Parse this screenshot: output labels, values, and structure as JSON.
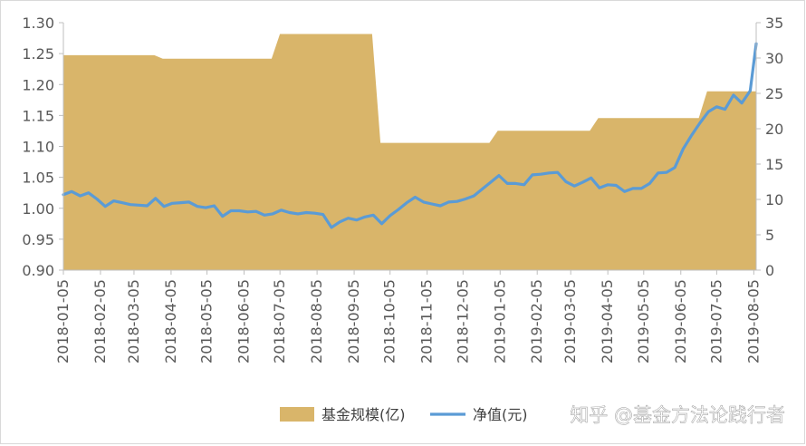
{
  "chart_data": {
    "type": "area+line",
    "x": [
      "2018-01-05",
      "2018-02-05",
      "2018-03-05",
      "2018-04-05",
      "2018-05-05",
      "2018-06-05",
      "2018-07-05",
      "2018-08-05",
      "2018-09-05",
      "2018-10-05",
      "2018-11-05",
      "2018-12-05",
      "2019-01-05",
      "2019-02-05",
      "2019-03-05",
      "2019-04-05",
      "2019-05-05",
      "2019-06-05",
      "2019-07-05",
      "2019-08-05"
    ],
    "xlim": [
      "2018-01-05",
      "2019-08-07"
    ],
    "y_left": {
      "ylim": [
        0.9,
        1.3
      ],
      "ticks": [
        "0.90",
        "0.95",
        "1.00",
        "1.05",
        "1.10",
        "1.15",
        "1.20",
        "1.25",
        "1.30"
      ]
    },
    "y_right": {
      "ylim": [
        0,
        35
      ],
      "ticks": [
        "0",
        "5",
        "10",
        "15",
        "20",
        "25",
        "30",
        "35"
      ]
    },
    "grid": false,
    "legend_position": "bottom",
    "series": [
      {
        "name": "基金规模(亿)",
        "type": "area",
        "axis": "right",
        "color": "#d9b56a",
        "points": [
          [
            "2018-01-05",
            30.4
          ],
          [
            "2018-03-22",
            30.4
          ],
          [
            "2018-03-29",
            29.9
          ],
          [
            "2018-06-28",
            29.9
          ],
          [
            "2018-07-05",
            33.4
          ],
          [
            "2018-09-20",
            33.4
          ],
          [
            "2018-09-27",
            18.0
          ],
          [
            "2018-12-27",
            18.0
          ],
          [
            "2019-01-03",
            19.7
          ],
          [
            "2019-03-21",
            19.7
          ],
          [
            "2019-03-28",
            21.5
          ],
          [
            "2019-06-20",
            21.5
          ],
          [
            "2019-06-27",
            25.3
          ],
          [
            "2019-08-07",
            25.3
          ]
        ]
      },
      {
        "name": "净值(元)",
        "type": "line",
        "axis": "left",
        "color": "#5b9bd5",
        "points": [
          [
            "2018-01-05",
            1.022
          ],
          [
            "2018-01-12",
            1.027
          ],
          [
            "2018-01-19",
            1.02
          ],
          [
            "2018-01-26",
            1.025
          ],
          [
            "2018-02-02",
            1.015
          ],
          [
            "2018-02-09",
            1.003
          ],
          [
            "2018-02-16",
            1.012
          ],
          [
            "2018-02-23",
            1.009
          ],
          [
            "2018-03-02",
            1.006
          ],
          [
            "2018-03-09",
            1.005
          ],
          [
            "2018-03-16",
            1.004
          ],
          [
            "2018-03-23",
            1.016
          ],
          [
            "2018-03-30",
            1.003
          ],
          [
            "2018-04-06",
            1.008
          ],
          [
            "2018-04-13",
            1.009
          ],
          [
            "2018-04-20",
            1.01
          ],
          [
            "2018-04-27",
            1.003
          ],
          [
            "2018-05-04",
            1.001
          ],
          [
            "2018-05-11",
            1.004
          ],
          [
            "2018-05-18",
            0.987
          ],
          [
            "2018-05-25",
            0.996
          ],
          [
            "2018-06-01",
            0.996
          ],
          [
            "2018-06-08",
            0.994
          ],
          [
            "2018-06-15",
            0.995
          ],
          [
            "2018-06-22",
            0.989
          ],
          [
            "2018-06-29",
            0.991
          ],
          [
            "2018-07-06",
            0.997
          ],
          [
            "2018-07-13",
            0.993
          ],
          [
            "2018-07-20",
            0.991
          ],
          [
            "2018-07-27",
            0.993
          ],
          [
            "2018-08-03",
            0.992
          ],
          [
            "2018-08-10",
            0.99
          ],
          [
            "2018-08-17",
            0.969
          ],
          [
            "2018-08-24",
            0.978
          ],
          [
            "2018-08-31",
            0.984
          ],
          [
            "2018-09-07",
            0.981
          ],
          [
            "2018-09-14",
            0.986
          ],
          [
            "2018-09-21",
            0.989
          ],
          [
            "2018-09-28",
            0.975
          ],
          [
            "2018-10-05",
            0.988
          ],
          [
            "2018-10-12",
            0.998
          ],
          [
            "2018-10-19",
            1.009
          ],
          [
            "2018-10-26",
            1.018
          ],
          [
            "2018-11-02",
            1.01
          ],
          [
            "2018-11-09",
            1.007
          ],
          [
            "2018-11-16",
            1.004
          ],
          [
            "2018-11-23",
            1.01
          ],
          [
            "2018-11-30",
            1.011
          ],
          [
            "2018-12-07",
            1.015
          ],
          [
            "2018-12-14",
            1.02
          ],
          [
            "2018-12-21",
            1.031
          ],
          [
            "2018-12-28",
            1.042
          ],
          [
            "2019-01-04",
            1.053
          ],
          [
            "2019-01-11",
            1.04
          ],
          [
            "2019-01-18",
            1.04
          ],
          [
            "2019-01-25",
            1.038
          ],
          [
            "2019-02-01",
            1.054
          ],
          [
            "2019-02-08",
            1.055
          ],
          [
            "2019-02-15",
            1.057
          ],
          [
            "2019-02-22",
            1.058
          ],
          [
            "2019-03-01",
            1.043
          ],
          [
            "2019-03-08",
            1.036
          ],
          [
            "2019-03-15",
            1.042
          ],
          [
            "2019-03-22",
            1.049
          ],
          [
            "2019-03-29",
            1.033
          ],
          [
            "2019-04-05",
            1.038
          ],
          [
            "2019-04-12",
            1.037
          ],
          [
            "2019-04-19",
            1.027
          ],
          [
            "2019-04-26",
            1.032
          ],
          [
            "2019-05-03",
            1.032
          ],
          [
            "2019-05-10",
            1.04
          ],
          [
            "2019-05-17",
            1.057
          ],
          [
            "2019-05-24",
            1.058
          ],
          [
            "2019-05-31",
            1.066
          ],
          [
            "2019-06-07",
            1.096
          ],
          [
            "2019-06-14",
            1.118
          ],
          [
            "2019-06-21",
            1.138
          ],
          [
            "2019-06-28",
            1.156
          ],
          [
            "2019-07-05",
            1.164
          ],
          [
            "2019-07-12",
            1.16
          ],
          [
            "2019-07-19",
            1.183
          ],
          [
            "2019-07-26",
            1.17
          ],
          [
            "2019-08-02",
            1.19
          ],
          [
            "2019-08-07",
            1.266
          ]
        ]
      }
    ]
  },
  "legend": {
    "items": [
      {
        "label": "基金规模(亿)",
        "color": "#d9b56a",
        "kind": "area"
      },
      {
        "label": "净值(元)",
        "color": "#5b9bd5",
        "kind": "line"
      }
    ]
  },
  "watermark": {
    "text": "知乎 @基金方法论践行者"
  }
}
